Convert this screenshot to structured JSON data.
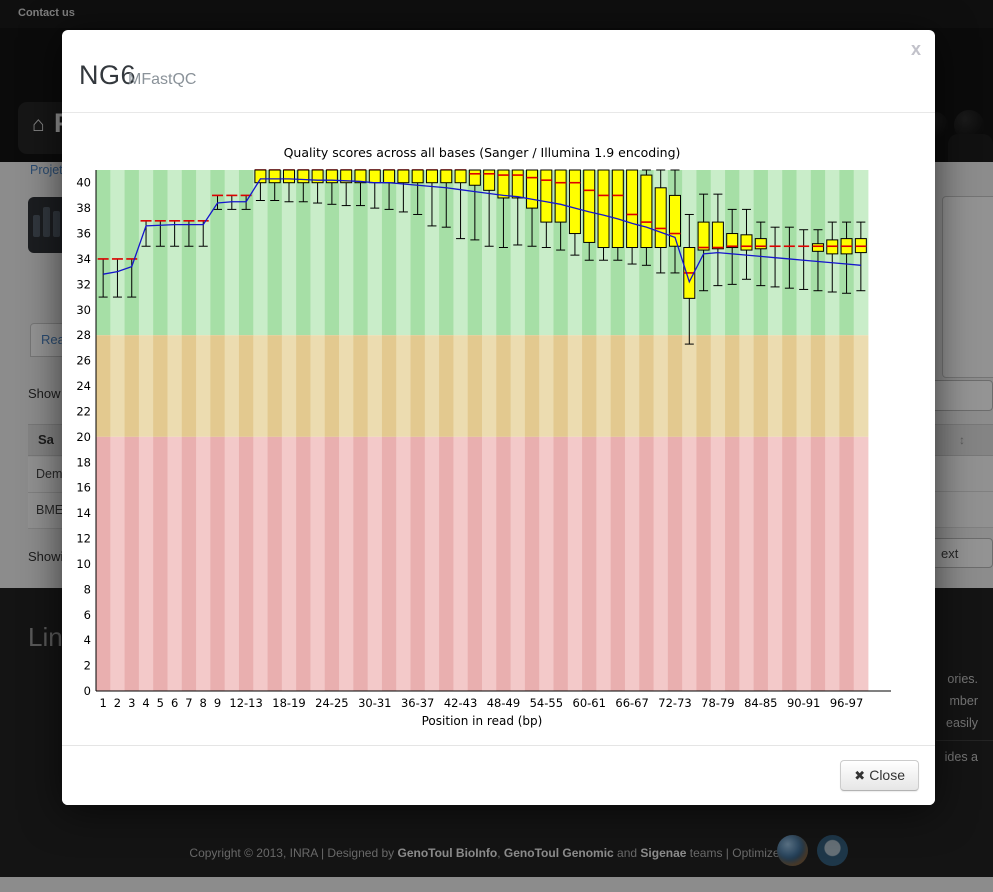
{
  "topbar": {
    "contact_link": "Contact us"
  },
  "background": {
    "page_title_fragment": "P",
    "breadcrumb_fragment": "Projet",
    "tab_fragment": "Rea",
    "show_label_fragment": "Show",
    "table_header_fragment": "Sa",
    "row1_fragment": "Dem",
    "row2_fragment": "BME",
    "showing_fragment": "Showi",
    "next_button_fragment": "ext",
    "sort_icon_glyph": "↕",
    "links_heading_fragment": "Link",
    "right_text_1": "ories.",
    "right_text_2": "mber",
    "right_text_3": "easily",
    "right_text_4": "ides a",
    "copyright_segments": [
      {
        "text": "Copyright © 2013, INRA | Designed by ",
        "bold": false
      },
      {
        "text": "GenoToul BioInfo",
        "bold": true
      },
      {
        "text": ", ",
        "bold": false
      },
      {
        "text": "GenoToul Genomic",
        "bold": true
      },
      {
        "text": " and ",
        "bold": false
      },
      {
        "text": "Sigenae",
        "bold": true
      },
      {
        "text": " teams | Optimized for",
        "bold": false
      }
    ],
    "browser_icons": [
      "firefox-icon",
      "chrome-icon"
    ]
  },
  "modal": {
    "title": "NG6",
    "subtitle": "MFastQC",
    "close_x": "x",
    "close_button_label": "Close",
    "close_button_glyph": "✖"
  },
  "chart_data": {
    "type": "boxplot",
    "title": "Quality scores across all bases (Sanger / Illumina 1.9 encoding)",
    "xlabel": "Position in read (bp)",
    "ylim": [
      0,
      41
    ],
    "ytick_step": 2,
    "zones": [
      {
        "range": [
          28,
          41
        ],
        "name": "good"
      },
      {
        "range": [
          20,
          28
        ],
        "name": "ok"
      },
      {
        "range": [
          0,
          20
        ],
        "name": "bad"
      }
    ],
    "xtick_labels": [
      "1",
      "2",
      "3",
      "4",
      "5",
      "6",
      "7",
      "8",
      "9",
      "12-13",
      "18-19",
      "24-25",
      "30-31",
      "36-37",
      "42-43",
      "48-49",
      "54-55",
      "60-61",
      "66-67",
      "72-73",
      "78-79",
      "84-85",
      "90-91",
      "96-97"
    ],
    "xtick_box_indices": [
      0,
      1,
      2,
      3,
      4,
      5,
      6,
      7,
      8,
      10,
      13,
      16,
      19,
      22,
      25,
      28,
      31,
      34,
      37,
      40,
      43,
      46,
      49,
      52
    ],
    "boxes": [
      [
        31,
        34,
        34,
        34,
        34
      ],
      [
        31,
        34,
        34,
        34,
        34
      ],
      [
        31,
        34,
        34,
        34,
        34
      ],
      [
        35,
        37,
        37,
        37,
        37
      ],
      [
        35,
        37,
        37,
        37,
        37
      ],
      [
        35,
        37,
        37,
        37,
        37
      ],
      [
        35,
        37,
        37,
        37,
        37
      ],
      [
        35,
        37,
        37,
        37,
        37
      ],
      [
        37.9,
        39,
        39,
        39,
        39
      ],
      [
        37.9,
        39,
        39,
        39,
        39
      ],
      [
        37.9,
        39,
        39,
        39,
        39
      ],
      [
        38.6,
        40,
        41,
        41,
        41
      ],
      [
        38.6,
        40,
        41,
        41,
        41
      ],
      [
        38.5,
        40,
        41,
        41,
        41
      ],
      [
        38.5,
        40,
        41,
        41,
        41
      ],
      [
        38.4,
        40,
        41,
        41,
        41
      ],
      [
        38.3,
        40,
        41,
        41,
        41
      ],
      [
        38.2,
        40,
        41,
        41,
        41
      ],
      [
        38.2,
        40,
        41,
        41,
        41
      ],
      [
        38.0,
        40,
        41,
        41,
        41
      ],
      [
        37.9,
        40,
        41,
        41,
        41
      ],
      [
        37.7,
        40,
        41,
        41,
        41
      ],
      [
        37.5,
        40,
        41,
        41,
        41
      ],
      [
        36.6,
        40,
        41,
        41,
        41
      ],
      [
        36.5,
        40,
        41,
        41,
        41
      ],
      [
        35.6,
        40,
        41,
        41,
        41
      ],
      [
        35.5,
        39.8,
        40.7,
        41,
        41
      ],
      [
        35.0,
        39.4,
        40.7,
        41,
        41
      ],
      [
        34.9,
        38.8,
        40.6,
        41,
        41
      ],
      [
        35.1,
        38.8,
        40.6,
        41,
        41
      ],
      [
        35.0,
        38.0,
        40.4,
        41,
        41
      ],
      [
        34.9,
        36.9,
        40.2,
        41,
        41
      ],
      [
        34.7,
        36.9,
        40.0,
        41,
        41
      ],
      [
        34.3,
        36.0,
        40.0,
        41,
        41
      ],
      [
        33.9,
        35.3,
        39.4,
        41,
        41
      ],
      [
        33.9,
        34.9,
        39.0,
        41,
        41
      ],
      [
        33.9,
        34.9,
        39.0,
        41,
        41
      ],
      [
        33.6,
        34.9,
        37.5,
        41,
        41
      ],
      [
        33.5,
        34.9,
        36.9,
        40.6,
        41
      ],
      [
        32.9,
        34.9,
        36.4,
        39.6,
        41
      ],
      [
        32.9,
        35.0,
        36.0,
        39.0,
        41
      ],
      [
        27.3,
        30.9,
        32.9,
        34.9,
        37.5
      ],
      [
        31.5,
        34.7,
        34.9,
        36.9,
        39.1
      ],
      [
        31.9,
        34.8,
        34.9,
        36.9,
        39.1
      ],
      [
        32.0,
        34.9,
        35.0,
        36.0,
        37.9
      ],
      [
        32.4,
        34.7,
        35.0,
        35.9,
        37.9
      ],
      [
        31.9,
        34.8,
        35.0,
        35.6,
        36.9
      ],
      [
        31.8,
        35.0,
        35.0,
        35.0,
        36.5
      ],
      [
        31.7,
        35.0,
        35.0,
        35.0,
        36.5
      ],
      [
        31.6,
        35.0,
        35.0,
        35.0,
        36.3
      ],
      [
        31.5,
        34.6,
        35.0,
        35.2,
        36.3
      ],
      [
        31.4,
        34.4,
        35.0,
        35.5,
        36.9
      ],
      [
        31.3,
        34.4,
        35.0,
        35.6,
        36.9
      ],
      [
        31.5,
        34.5,
        35.0,
        35.6,
        36.9
      ]
    ],
    "mean": [
      32.8,
      33.0,
      33.4,
      36.6,
      36.65,
      36.7,
      36.7,
      36.7,
      38.4,
      38.5,
      38.5,
      40.3,
      40.3,
      40.3,
      40.25,
      40.2,
      40.2,
      40.15,
      40.1,
      40.0,
      40.0,
      39.9,
      39.8,
      39.7,
      39.6,
      39.45,
      39.3,
      39.15,
      39.0,
      38.9,
      38.7,
      38.5,
      38.3,
      38.0,
      37.7,
      37.45,
      37.15,
      36.8,
      36.5,
      36.1,
      35.7,
      32.2,
      34.4,
      34.5,
      34.4,
      34.3,
      34.2,
      34.1,
      34.0,
      33.9,
      33.8,
      33.7,
      33.6,
      33.5
    ],
    "colors": {
      "box": "#ffff00",
      "median": "#dd0000",
      "mean": "#1515cc",
      "whisker": "#000000",
      "zone_green": [
        "#a6dfa6",
        "#c9edc9"
      ],
      "zone_orange": [
        "#e3c98f",
        "#ecdcb0"
      ],
      "zone_red": [
        "#e9afaf",
        "#f3c9c9"
      ]
    }
  }
}
